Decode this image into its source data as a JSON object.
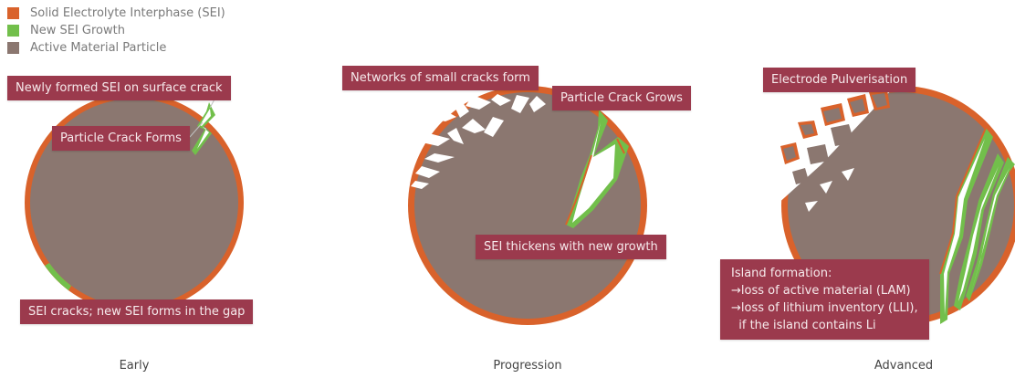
{
  "legend": [
    {
      "label": "Solid Electrolyte Interphase (SEI)",
      "color": "#d9622b"
    },
    {
      "label": "New SEI Growth",
      "color": "#72bf4b"
    },
    {
      "label": "Active Material Particle",
      "color": "#8b7770"
    }
  ],
  "colors": {
    "sei": "#d9622b",
    "new_sei": "#72bf4b",
    "particle": "#8b7770",
    "label_bg": "#9b3a4d",
    "label_text": "#f6eaec"
  },
  "stages": {
    "early": "Early",
    "progression": "Progression",
    "advanced": "Advanced"
  },
  "labels": {
    "newly_formed": "Newly formed SEI on surface crack",
    "crack_forms": "Particle Crack Forms",
    "sei_cracks": "SEI cracks; new SEI forms in the gap",
    "networks": "Networks of small cracks form",
    "crack_grows": "Particle Crack Grows",
    "sei_thickens": "SEI thickens with new growth",
    "pulverisation": "Electrode Pulverisation",
    "island_lines": [
      "Island formation:",
      "→loss of active material (LAM)",
      "→loss of lithium inventory (LLI),",
      "  if the island contains Li"
    ]
  }
}
